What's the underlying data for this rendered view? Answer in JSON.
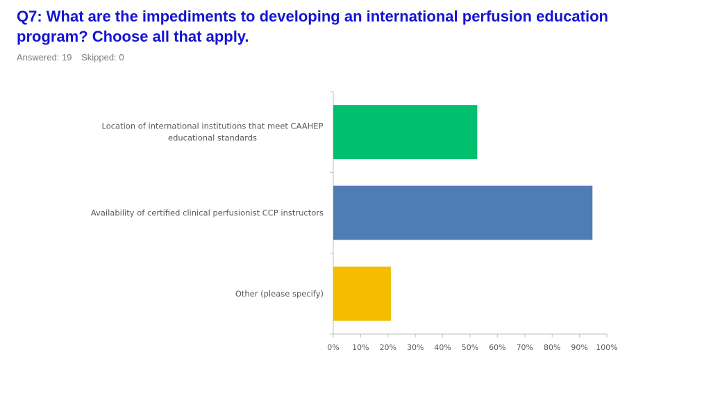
{
  "header": {
    "question": "Q7: What are the impediments to developing an international perfusion education program? Choose all that apply.",
    "answered": "Answered: 19",
    "skipped": "Skipped: 0"
  },
  "chart_data": {
    "type": "bar",
    "orientation": "horizontal",
    "categories": [
      [
        "Location of international institutions that meet CAAHEP",
        "educational standards"
      ],
      [
        "Availability of certified clinical perfusionist CCP instructors"
      ],
      [
        "Other (please specify)"
      ]
    ],
    "values": [
      52.63,
      94.74,
      21.05
    ],
    "colors": [
      "#00c070",
      "#507cb6",
      "#f5bc00"
    ],
    "xlim": [
      0,
      100
    ],
    "xticks": [
      0,
      10,
      20,
      30,
      40,
      50,
      60,
      70,
      80,
      90,
      100
    ],
    "tick_labels": [
      "0%",
      "10%",
      "20%",
      "30%",
      "40%",
      "50%",
      "60%",
      "70%",
      "80%",
      "90%",
      "100%"
    ],
    "grid": false,
    "legend": "none"
  }
}
